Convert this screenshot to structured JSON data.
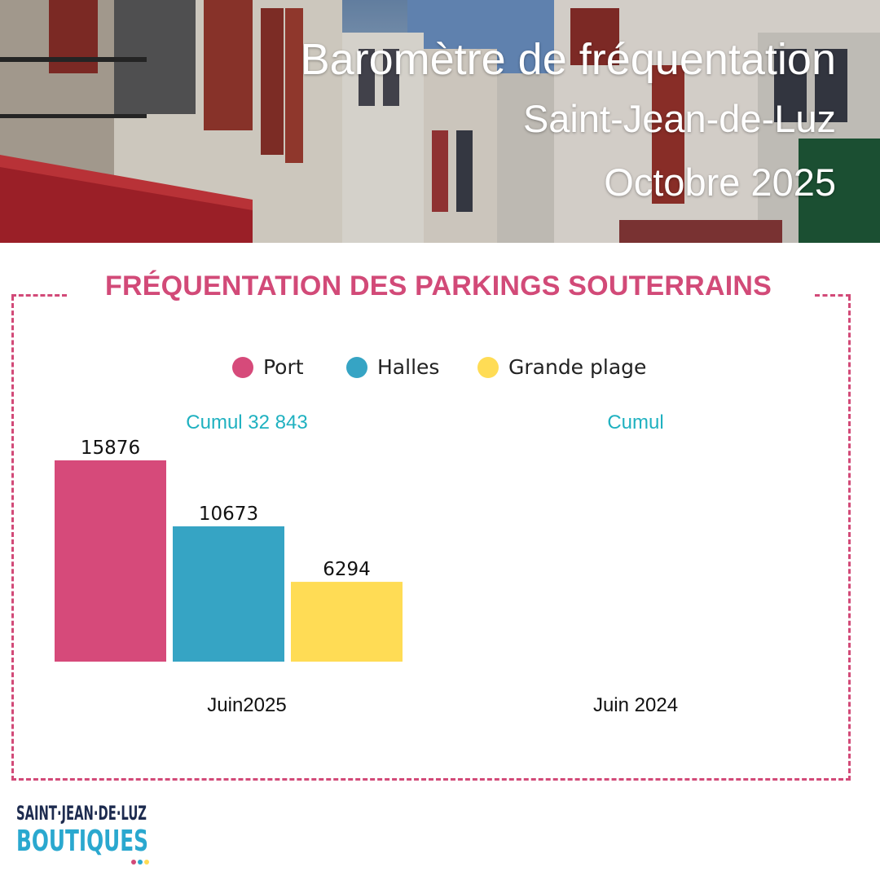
{
  "header": {
    "title": "Baromètre de fréquentation",
    "city": "Saint-Jean-de-Luz",
    "period": "Octobre 2025"
  },
  "section_title": "FRÉQUENTATION DES PARKINGS SOUTERRAINS",
  "colors": {
    "accent": "#d24a78",
    "cumul": "#1fb1c0",
    "port": "#d64a7a",
    "halles": "#36a4c4",
    "grande_plage": "#ffdc55"
  },
  "chart_data": {
    "type": "bar",
    "legend_position": "top",
    "grid": false,
    "series": [
      {
        "name": "Port",
        "color": "#d64a7a"
      },
      {
        "name": "Halles",
        "color": "#36a4c4"
      },
      {
        "name": "Grande plage",
        "color": "#ffdc55"
      }
    ],
    "groups": [
      {
        "label": "Juin2025",
        "cumul": "Cumul 32 843",
        "values": [
          15876,
          10673,
          6294
        ]
      },
      {
        "label": "Juin 2024",
        "cumul": "Cumul",
        "values": []
      }
    ],
    "ylim": [
      0,
      15876
    ]
  },
  "logo": {
    "line1": "SAINT·JEAN·DE·LUZ",
    "line2": "BOUTIQUES"
  }
}
